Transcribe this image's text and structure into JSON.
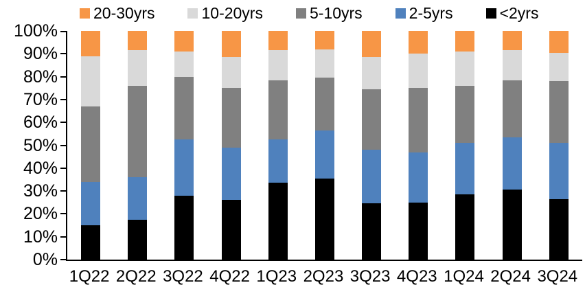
{
  "chart_data": {
    "type": "bar",
    "stacked": true,
    "stacking": "percent",
    "title": "",
    "xlabel": "",
    "ylabel": "",
    "ylim": [
      0,
      100
    ],
    "y_tick_step": 10,
    "y_tick_suffix": "%",
    "grid": false,
    "legend_position": "top",
    "legend_order": [
      "20-30yrs",
      "10-20yrs",
      "5-10yrs",
      "2-5yrs",
      "<2yrs"
    ],
    "categories": [
      "1Q22",
      "2Q22",
      "3Q22",
      "4Q22",
      "1Q23",
      "2Q23",
      "3Q23",
      "4Q23",
      "1Q24",
      "2Q24",
      "3Q24"
    ],
    "series": [
      {
        "name": "<2yrs",
        "color": "#000000",
        "values": [
          15,
          17.5,
          28,
          26,
          33.5,
          35.5,
          24.5,
          25,
          28.5,
          30.5,
          26.5
        ]
      },
      {
        "name": "2-5yrs",
        "color": "#4F81BD",
        "values": [
          19,
          18.5,
          24.5,
          23,
          19,
          21,
          23.5,
          22,
          22.5,
          23,
          24.5
        ]
      },
      {
        "name": "5-10yrs",
        "color": "#808080",
        "values": [
          33,
          40,
          27.5,
          26,
          26,
          23,
          26.5,
          28,
          25,
          25,
          27
        ]
      },
      {
        "name": "10-20yrs",
        "color": "#D9D9D9",
        "values": [
          22,
          15.5,
          11,
          13.5,
          13,
          12.5,
          14,
          15,
          15,
          13,
          12.5
        ]
      },
      {
        "name": "20-30yrs",
        "color": "#F79646",
        "values": [
          11,
          8.5,
          9,
          11.5,
          8.5,
          8,
          11.5,
          10,
          9,
          8.5,
          9.5
        ]
      }
    ],
    "colors": {
      "axis": "#000000",
      "text": "#000000",
      "background": "#ffffff"
    }
  }
}
